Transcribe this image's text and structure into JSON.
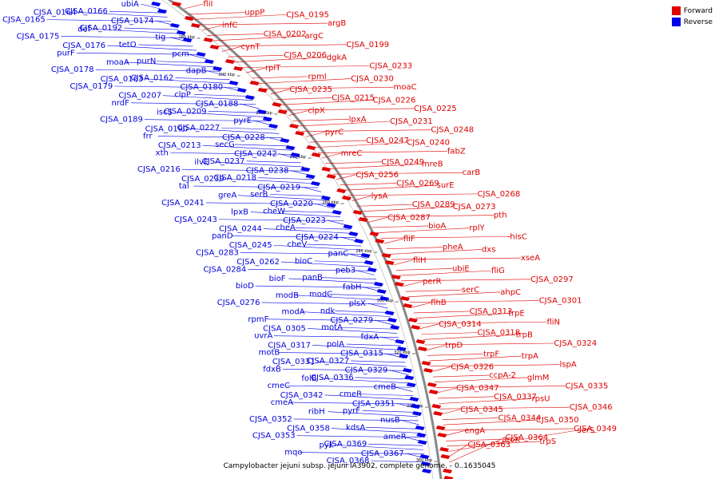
{
  "legend": {
    "forward": {
      "label": "Forward",
      "color": "#e00000"
    },
    "reverse": {
      "label": "Reverse",
      "color": "#0000ee"
    }
  },
  "caption": "Campylobacter jejuni subsp. jejuni IA3902, complete genome. - 0..1635045",
  "ticks": [
    "180 kbp",
    "200 kbp",
    "220 kbp",
    "240 kbp",
    "260 kbp",
    "280 kbp",
    "300 kbp",
    "320 kbp",
    "340 kbp",
    "360 kbp"
  ],
  "forward_genes": [
    "fliI",
    "uppP",
    "CJSA_0195",
    "argB",
    "infC",
    "CJSA_0202",
    "argC",
    "CJSA_0199",
    "cynT",
    "CJSA_0206",
    "dgkA",
    "CJSA_0233",
    "rplT",
    "rpmI",
    "CJSA_0230",
    "moaC",
    "CJSA_0235",
    "CJSA_0215",
    "CJSA_0226",
    "CJSA_0225",
    "clpX",
    "lpxA",
    "CJSA_0231",
    "CJSA_0248",
    "pyrC",
    "CJSA_0247",
    "CJSA_0240",
    "fabZ",
    "mreC",
    "CJSA_0249",
    "mreB",
    "carB",
    "CJSA_0256",
    "CJSA_0269",
    "surE",
    "CJSA_0268",
    "lysA",
    "CJSA_0289",
    "CJSA_0273",
    "pth",
    "CJSA_0287",
    "bioA",
    "rplY",
    "hisC",
    "fliF",
    "pheA",
    "dxs",
    "xseA",
    "fliH",
    "ubiE",
    "fliG",
    "CJSA_0297",
    "perR",
    "serC",
    "ahpC",
    "CJSA_0301",
    "flhB",
    "CJSA_0313",
    "trpE",
    "fliN",
    "CJSA_0314",
    "CJSA_0318",
    "trpB",
    "CJSA_0324",
    "trpD",
    "trpF",
    "trpA",
    "lspA",
    "CJSA_0326",
    "ccpA-2",
    "glmM",
    "CJSA_0335",
    "CJSA_0347",
    "CJSA_0337",
    "rpsU",
    "CJSA_0346",
    "CJSA_0345",
    "CJSA_0344",
    "CJSA_0350",
    "CJSA_0349",
    "engA",
    "aroK",
    "trpS",
    "serS",
    "CJSA_0363",
    "CJSA_0364"
  ],
  "reverse_genes": [
    "ubiA",
    "CJSA_0166",
    "CJSA_0164",
    "CJSA_0165",
    "CJSA_0174",
    "CJSA_0192",
    "def",
    "CJSA_0175",
    "tig",
    "tetO",
    "CJSA_0176",
    "purF",
    "pcm",
    "purN",
    "moaA",
    "CJSA_0178",
    "dapB",
    "CJSA_0162",
    "CJSA_0163",
    "CJSA_0179",
    "CJSA_0180",
    "clpP",
    "CJSA_0207",
    "nrdF",
    "CJSA_0188",
    "CJSA_0209",
    "iscS",
    "CJSA_0189",
    "pyrE",
    "CJSA_0227",
    "CJSA_0190",
    "frr",
    "CJSA_0228",
    "secG",
    "CJSA_0213",
    "xth",
    "CJSA_0242",
    "CJSA_0237",
    "ilvE",
    "CJSA_0216",
    "CJSA_0238",
    "CJSA_0218",
    "CJSA_0239",
    "tal",
    "CJSA_0219",
    "serB",
    "greA",
    "CJSA_0241",
    "CJSA_0220",
    "cheW",
    "lpxB",
    "CJSA_0243",
    "CJSA_0223",
    "cheA",
    "CJSA_0244",
    "panD",
    "CJSA_0224",
    "cheV",
    "CJSA_0245",
    "CJSA_0283",
    "panC",
    "bioC",
    "CJSA_0262",
    "CJSA_0284",
    "peb3",
    "panB",
    "bioF",
    "bioD",
    "fabH",
    "modC",
    "modB",
    "CJSA_0276",
    "plsX",
    "ndk",
    "modA",
    "rpmF",
    "CJSA_0279",
    "motA",
    "CJSA_0305",
    "uvrA",
    "fdxA",
    "polA",
    "CJSA_0317",
    "motB",
    "CJSA_0315",
    "CJSA_0327",
    "CJSA_0331",
    "fdxB",
    "CJSA_0329",
    "CJSA_0336",
    "folB",
    "cmeC",
    "cmeB",
    "cmeR",
    "CJSA_0342",
    "cmeA",
    "CJSA_0351",
    "pyrF",
    "ribH",
    "CJSA_0352",
    "nusB",
    "kdsA",
    "CJSA_0358",
    "CJSA_0353",
    "ameR",
    "CJSA_0369",
    "pyk",
    "mqo",
    "CJSA_0367",
    "CJSA_0368"
  ]
}
